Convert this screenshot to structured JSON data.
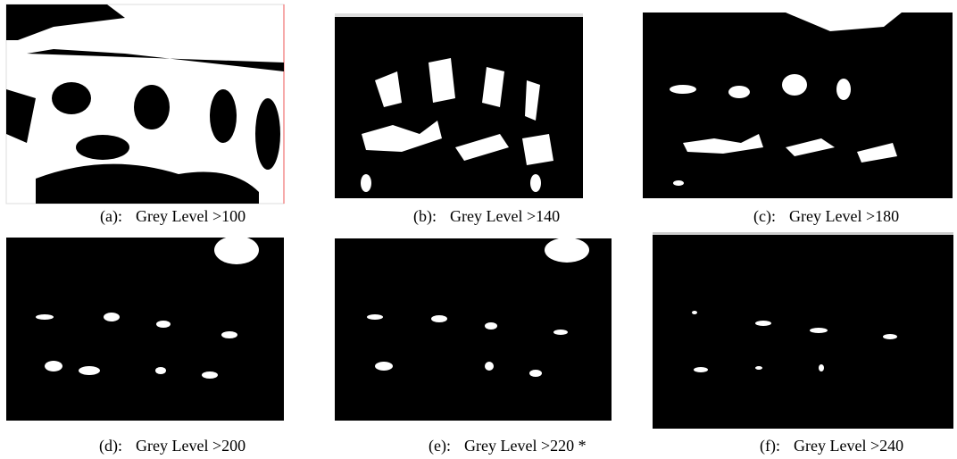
{
  "figure": {
    "panels": [
      {
        "label": "(a):",
        "caption": "Grey Level >100"
      },
      {
        "label": "(b):",
        "caption": "Grey Level >140"
      },
      {
        "label": "(c):",
        "caption": "Grey Level >180"
      },
      {
        "label": "(d):",
        "caption": "Grey Level >200"
      },
      {
        "label": "(e):",
        "caption": "Grey Level >220 *"
      },
      {
        "label": "(f):",
        "caption": "Grey Level >240"
      }
    ]
  }
}
